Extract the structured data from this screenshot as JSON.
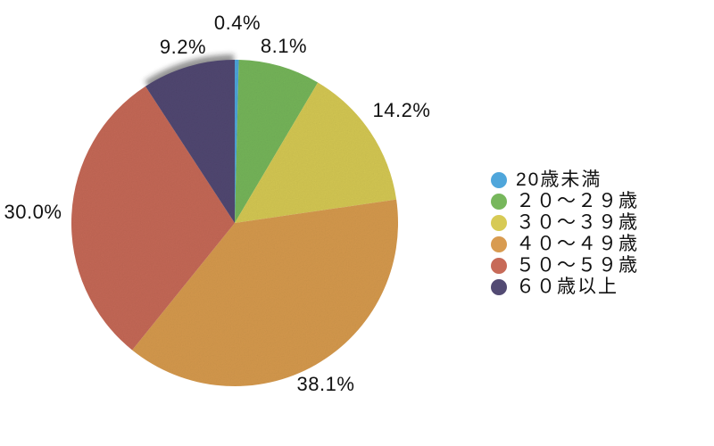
{
  "chart_data": {
    "type": "pie",
    "title": "",
    "legend_position": "right",
    "start_angle_deg": 0,
    "direction": "clockwise",
    "total": 100.0,
    "slices": [
      {
        "label": "20歳未満",
        "value": 0.4,
        "display": "0.4%",
        "color": "#4FA6DB"
      },
      {
        "label": "２０〜２９歳",
        "value": 8.1,
        "display": "8.1%",
        "color": "#77B75C"
      },
      {
        "label": "３０〜３９歳",
        "value": 14.2,
        "display": "14.2%",
        "color": "#D7CA55"
      },
      {
        "label": "４０〜４９歳",
        "value": 38.1,
        "display": "38.1%",
        "color": "#D89B50"
      },
      {
        "label": "５０〜５９歳",
        "value": 30.0,
        "display": "30.0%",
        "color": "#C76A58"
      },
      {
        "label": "６０歳以上",
        "value": 9.2,
        "display": "9.2%",
        "color": "#524A73"
      }
    ]
  }
}
